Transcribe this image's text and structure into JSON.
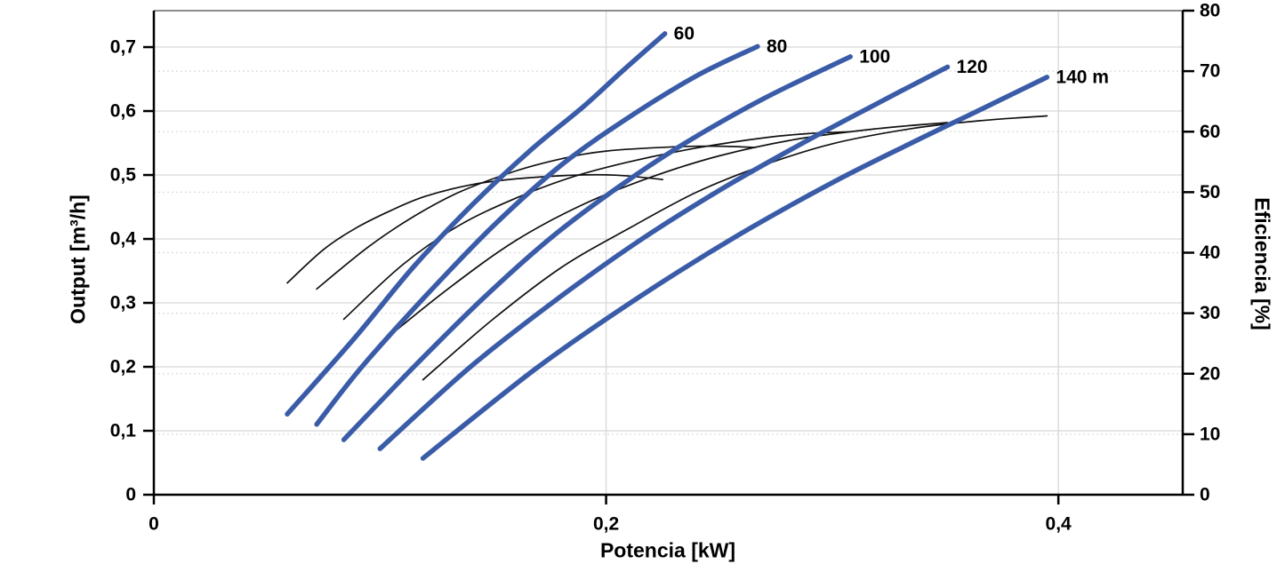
{
  "chart_data": {
    "type": "line",
    "title": "",
    "xlabel": "Potencia [kW]",
    "ylabel_left": "Output [m³/h]",
    "ylabel_right": "Eficiencia [%]",
    "xlim": [
      0,
      0.455
    ],
    "ylim_left": [
      0,
      0.757
    ],
    "ylim_right": [
      0,
      80
    ],
    "grid": {
      "horizontal_solid": "left_axis_ticks",
      "horizontal_dotted": "right_axis_ticks",
      "vertical_solid": [
        0.2,
        0.4
      ]
    },
    "legend_position": "curve-end-labels",
    "x_ticks": [
      {
        "v": 0,
        "label": "0"
      },
      {
        "v": 0.2,
        "label": "0,2"
      },
      {
        "v": 0.4,
        "label": "0,4"
      }
    ],
    "y_left_ticks": [
      {
        "v": 0,
        "label": "0"
      },
      {
        "v": 0.1,
        "label": "0,1"
      },
      {
        "v": 0.2,
        "label": "0,2"
      },
      {
        "v": 0.3,
        "label": "0,3"
      },
      {
        "v": 0.4,
        "label": "0,4"
      },
      {
        "v": 0.5,
        "label": "0,5"
      },
      {
        "v": 0.6,
        "label": "0,6"
      },
      {
        "v": 0.7,
        "label": "0,7"
      }
    ],
    "y_right_ticks": [
      {
        "v": 0,
        "label": "0"
      },
      {
        "v": 10,
        "label": "10"
      },
      {
        "v": 20,
        "label": "20"
      },
      {
        "v": 30,
        "label": "30"
      },
      {
        "v": 40,
        "label": "40"
      },
      {
        "v": 50,
        "label": "50"
      },
      {
        "v": 60,
        "label": "60"
      },
      {
        "v": 70,
        "label": "70"
      },
      {
        "v": 80,
        "label": "80"
      }
    ],
    "colors": {
      "head_curve": "#3A5CA8",
      "efficiency_curve": "#111111",
      "grid_solid": "#d7d7d7",
      "grid_dotted": "#dcdcdc",
      "axis": "#000000",
      "frame_top": "#8c8c8c"
    },
    "head_curves": [
      {
        "name": "head-60",
        "label": "60",
        "head_m": 60,
        "axis": "left",
        "points": [
          [
            0.059,
            0.126
          ],
          [
            0.089,
            0.246
          ],
          [
            0.115,
            0.357
          ],
          [
            0.141,
            0.454
          ],
          [
            0.167,
            0.54
          ],
          [
            0.19,
            0.607
          ],
          [
            0.207,
            0.662
          ],
          [
            0.226,
            0.721
          ]
        ]
      },
      {
        "name": "head-80",
        "label": "80",
        "head_m": 80,
        "axis": "left",
        "points": [
          [
            0.072,
            0.11
          ],
          [
            0.092,
            0.2
          ],
          [
            0.12,
            0.31
          ],
          [
            0.15,
            0.42
          ],
          [
            0.18,
            0.515
          ],
          [
            0.21,
            0.59
          ],
          [
            0.24,
            0.655
          ],
          [
            0.267,
            0.701
          ]
        ]
      },
      {
        "name": "head-100",
        "label": "100",
        "head_m": 100,
        "axis": "left",
        "points": [
          [
            0.084,
            0.086
          ],
          [
            0.115,
            0.2
          ],
          [
            0.145,
            0.305
          ],
          [
            0.175,
            0.4
          ],
          [
            0.205,
            0.48
          ],
          [
            0.235,
            0.55
          ],
          [
            0.27,
            0.62
          ],
          [
            0.308,
            0.685
          ]
        ]
      },
      {
        "name": "head-120",
        "label": "120",
        "head_m": 120,
        "axis": "left",
        "points": [
          [
            0.1,
            0.072
          ],
          [
            0.14,
            0.2
          ],
          [
            0.178,
            0.305
          ],
          [
            0.215,
            0.398
          ],
          [
            0.252,
            0.48
          ],
          [
            0.287,
            0.55
          ],
          [
            0.32,
            0.612
          ],
          [
            0.351,
            0.669
          ]
        ]
      },
      {
        "name": "head-140",
        "label": "140 m",
        "head_m": 140,
        "axis": "left",
        "points": [
          [
            0.119,
            0.057
          ],
          [
            0.17,
            0.2
          ],
          [
            0.215,
            0.31
          ],
          [
            0.258,
            0.405
          ],
          [
            0.3,
            0.488
          ],
          [
            0.335,
            0.55
          ],
          [
            0.366,
            0.603
          ],
          [
            0.395,
            0.653
          ]
        ]
      }
    ],
    "efficiency_curves": [
      {
        "name": "efficiency-60",
        "head_m": 60,
        "axis": "right",
        "points": [
          [
            0.059,
            35
          ],
          [
            0.075,
            40.5
          ],
          [
            0.089,
            44
          ],
          [
            0.105,
            47
          ],
          [
            0.12,
            49.3
          ],
          [
            0.14,
            51.2
          ],
          [
            0.16,
            52.2
          ],
          [
            0.185,
            52.8
          ],
          [
            0.205,
            52.8
          ],
          [
            0.225,
            52.1
          ]
        ]
      },
      {
        "name": "efficiency-80",
        "head_m": 80,
        "axis": "right",
        "points": [
          [
            0.072,
            34
          ],
          [
            0.095,
            41
          ],
          [
            0.115,
            46
          ],
          [
            0.135,
            50
          ],
          [
            0.16,
            53.5
          ],
          [
            0.18,
            55.5
          ],
          [
            0.2,
            56.8
          ],
          [
            0.23,
            57.5
          ],
          [
            0.25,
            57.6
          ],
          [
            0.266,
            57.4
          ]
        ]
      },
      {
        "name": "efficiency-100",
        "head_m": 100,
        "axis": "right",
        "points": [
          [
            0.084,
            29
          ],
          [
            0.11,
            38
          ],
          [
            0.135,
            44.5
          ],
          [
            0.16,
            49
          ],
          [
            0.185,
            52.5
          ],
          [
            0.21,
            55
          ],
          [
            0.24,
            57.3
          ],
          [
            0.27,
            59
          ],
          [
            0.29,
            59.7
          ],
          [
            0.308,
            60
          ]
        ]
      },
      {
        "name": "efficiency-120",
        "head_m": 120,
        "axis": "right",
        "points": [
          [
            0.1,
            25
          ],
          [
            0.13,
            34
          ],
          [
            0.16,
            42
          ],
          [
            0.19,
            48
          ],
          [
            0.22,
            52.5
          ],
          [
            0.25,
            56
          ],
          [
            0.285,
            58.8
          ],
          [
            0.32,
            60.5
          ],
          [
            0.351,
            61.5
          ]
        ]
      },
      {
        "name": "efficiency-140",
        "head_m": 140,
        "axis": "right",
        "points": [
          [
            0.119,
            19
          ],
          [
            0.15,
            29
          ],
          [
            0.18,
            37.5
          ],
          [
            0.21,
            44
          ],
          [
            0.24,
            50
          ],
          [
            0.27,
            54.5
          ],
          [
            0.3,
            58
          ],
          [
            0.335,
            60.5
          ],
          [
            0.365,
            61.8
          ],
          [
            0.395,
            62.6
          ]
        ]
      }
    ]
  }
}
